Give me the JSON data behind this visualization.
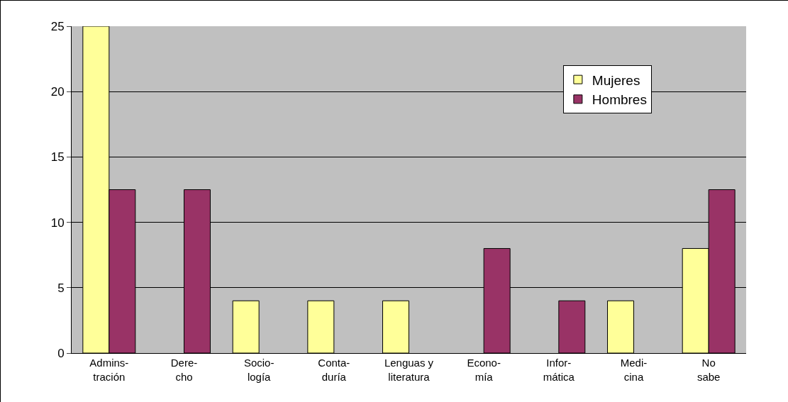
{
  "chart_data": {
    "type": "bar",
    "categories": [
      "Admins-\ntración",
      "Dere-\ncho",
      "Socio-\nlogía",
      "Conta-\nduría",
      "Lenguas y\nliteratura",
      "Econo-\nmía",
      "Infor-\nmática",
      "Medi-\ncina",
      "No\nsabe"
    ],
    "series": [
      {
        "name": "Mujeres",
        "color": "#ffff99",
        "values": [
          25,
          0,
          4,
          4,
          4,
          0,
          0,
          4,
          8
        ]
      },
      {
        "name": "Hombres",
        "color": "#993366",
        "values": [
          12.5,
          12.5,
          0,
          0,
          0,
          8,
          4,
          0,
          12.5
        ]
      }
    ],
    "ylim": [
      0,
      25
    ],
    "yticks": [
      0,
      5,
      10,
      15,
      20,
      25
    ],
    "grid": "y",
    "legend": "top right"
  }
}
